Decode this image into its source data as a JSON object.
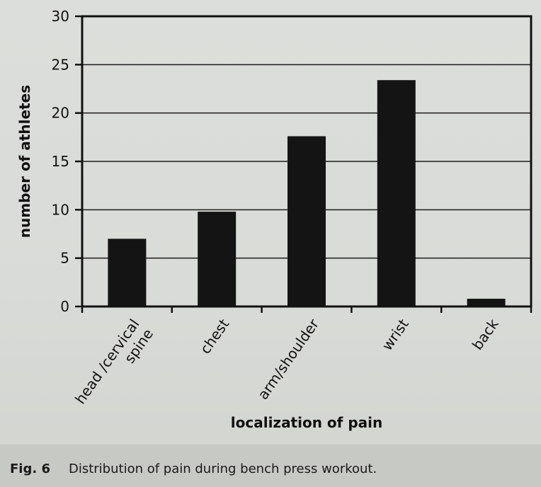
{
  "chart_data": {
    "type": "bar",
    "categories": [
      "head /cervical spine",
      "chest",
      "arm/shoulder",
      "wrist",
      "back"
    ],
    "category_lines": [
      [
        "head /cervical",
        "spine"
      ],
      [
        "chest"
      ],
      [
        "arm/shoulder"
      ],
      [
        "wrist"
      ],
      [
        "back"
      ]
    ],
    "values": [
      7,
      9.8,
      17.6,
      23.4,
      0.8
    ],
    "title": "",
    "xlabel": "localization of pain",
    "ylabel": "number of athletes",
    "ylim": [
      0,
      30
    ],
    "yticks": [
      0,
      5,
      10,
      15,
      20,
      25,
      30
    ],
    "grid": true,
    "bar_color": "#141414",
    "grid_color": "#1c1c1c"
  },
  "caption": {
    "label": "Fig. 6",
    "text": "Distribution of pain during bench press workout."
  }
}
